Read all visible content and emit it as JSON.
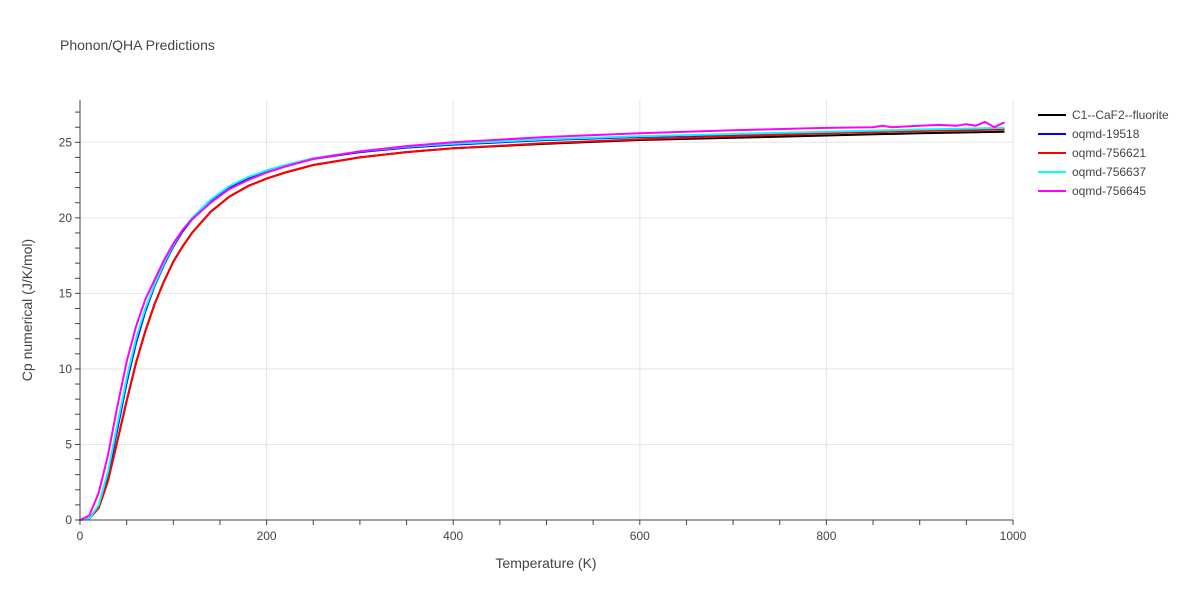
{
  "chart_data": {
    "type": "line",
    "title": "Phonon/QHA Predictions",
    "xlabel": "Temperature (K)",
    "ylabel": "Cp numerical (J/K/mol)",
    "xlim": [
      0,
      1000
    ],
    "ylim": [
      0,
      27.8
    ],
    "x_ticks": [
      0,
      200,
      400,
      600,
      800,
      1000
    ],
    "y_ticks": [
      0,
      5,
      10,
      15,
      20,
      25
    ],
    "grid": true,
    "legend_position": "top-right",
    "series": [
      {
        "name": "C1--CaF2--fluorite",
        "color": "#000000",
        "x": [
          0,
          10,
          20,
          30,
          40,
          50,
          60,
          70,
          80,
          90,
          100,
          110,
          120,
          140,
          160,
          180,
          200,
          220,
          250,
          300,
          350,
          400,
          500,
          600,
          700,
          800,
          900,
          990
        ],
        "y": [
          0,
          0.1,
          0.8,
          2.6,
          5.2,
          7.9,
          10.4,
          12.5,
          14.3,
          15.8,
          17.1,
          18.1,
          19.0,
          20.4,
          21.4,
          22.1,
          22.6,
          23.0,
          23.5,
          24.0,
          24.35,
          24.6,
          24.9,
          25.15,
          25.3,
          25.45,
          25.6,
          25.7
        ]
      },
      {
        "name": "oqmd-19518",
        "color": "#0000ff",
        "x": [
          0,
          10,
          20,
          30,
          40,
          50,
          60,
          70,
          80,
          90,
          100,
          110,
          120,
          140,
          160,
          180,
          200,
          220,
          250,
          300,
          350,
          400,
          500,
          600,
          700,
          800,
          900,
          990
        ],
        "y": [
          0,
          0.1,
          0.9,
          3.0,
          6.0,
          9.1,
          11.7,
          13.8,
          15.5,
          16.9,
          18.1,
          19.1,
          19.9,
          21.1,
          22.0,
          22.6,
          23.1,
          23.45,
          23.9,
          24.35,
          24.65,
          24.85,
          25.15,
          25.35,
          25.5,
          25.65,
          25.8,
          25.9
        ]
      },
      {
        "name": "oqmd-756621",
        "color": "#ff0000",
        "x": [
          0,
          10,
          20,
          30,
          40,
          50,
          60,
          70,
          80,
          90,
          100,
          110,
          120,
          140,
          160,
          180,
          200,
          220,
          250,
          300,
          350,
          400,
          500,
          600,
          700,
          800,
          900,
          990
        ],
        "y": [
          0,
          0.1,
          0.8,
          2.6,
          5.2,
          7.9,
          10.4,
          12.5,
          14.3,
          15.8,
          17.1,
          18.1,
          19.0,
          20.4,
          21.4,
          22.1,
          22.6,
          23.0,
          23.5,
          24.0,
          24.35,
          24.6,
          24.95,
          25.2,
          25.4,
          25.6,
          25.75,
          25.85
        ]
      },
      {
        "name": "oqmd-756637",
        "color": "#00ffff",
        "x": [
          0,
          10,
          20,
          30,
          40,
          50,
          60,
          70,
          80,
          90,
          100,
          110,
          120,
          140,
          160,
          180,
          200,
          220,
          250,
          300,
          350,
          400,
          500,
          600,
          700,
          800,
          900,
          990
        ],
        "y": [
          0,
          0.1,
          1.0,
          3.2,
          6.3,
          9.4,
          12.0,
          14.0,
          15.6,
          17.0,
          18.2,
          19.2,
          20.0,
          21.2,
          22.1,
          22.7,
          23.15,
          23.5,
          23.95,
          24.4,
          24.7,
          24.9,
          25.2,
          25.4,
          25.55,
          25.7,
          25.85,
          25.95
        ]
      },
      {
        "name": "oqmd-756645",
        "color": "#ff00ff",
        "x": [
          0,
          10,
          20,
          30,
          40,
          50,
          60,
          70,
          80,
          90,
          100,
          110,
          120,
          140,
          160,
          180,
          200,
          220,
          250,
          300,
          350,
          400,
          500,
          600,
          700,
          800,
          850,
          860,
          870,
          900,
          920,
          940,
          950,
          960,
          970,
          980,
          990
        ],
        "y": [
          0,
          0.3,
          1.8,
          4.3,
          7.5,
          10.5,
          12.8,
          14.6,
          15.9,
          17.2,
          18.3,
          19.2,
          19.9,
          21.0,
          21.9,
          22.5,
          23.0,
          23.4,
          23.9,
          24.4,
          24.75,
          25.0,
          25.35,
          25.6,
          25.8,
          25.95,
          26.0,
          26.1,
          26.0,
          26.1,
          26.15,
          26.1,
          26.2,
          26.1,
          26.35,
          26.0,
          26.3
        ]
      }
    ]
  }
}
